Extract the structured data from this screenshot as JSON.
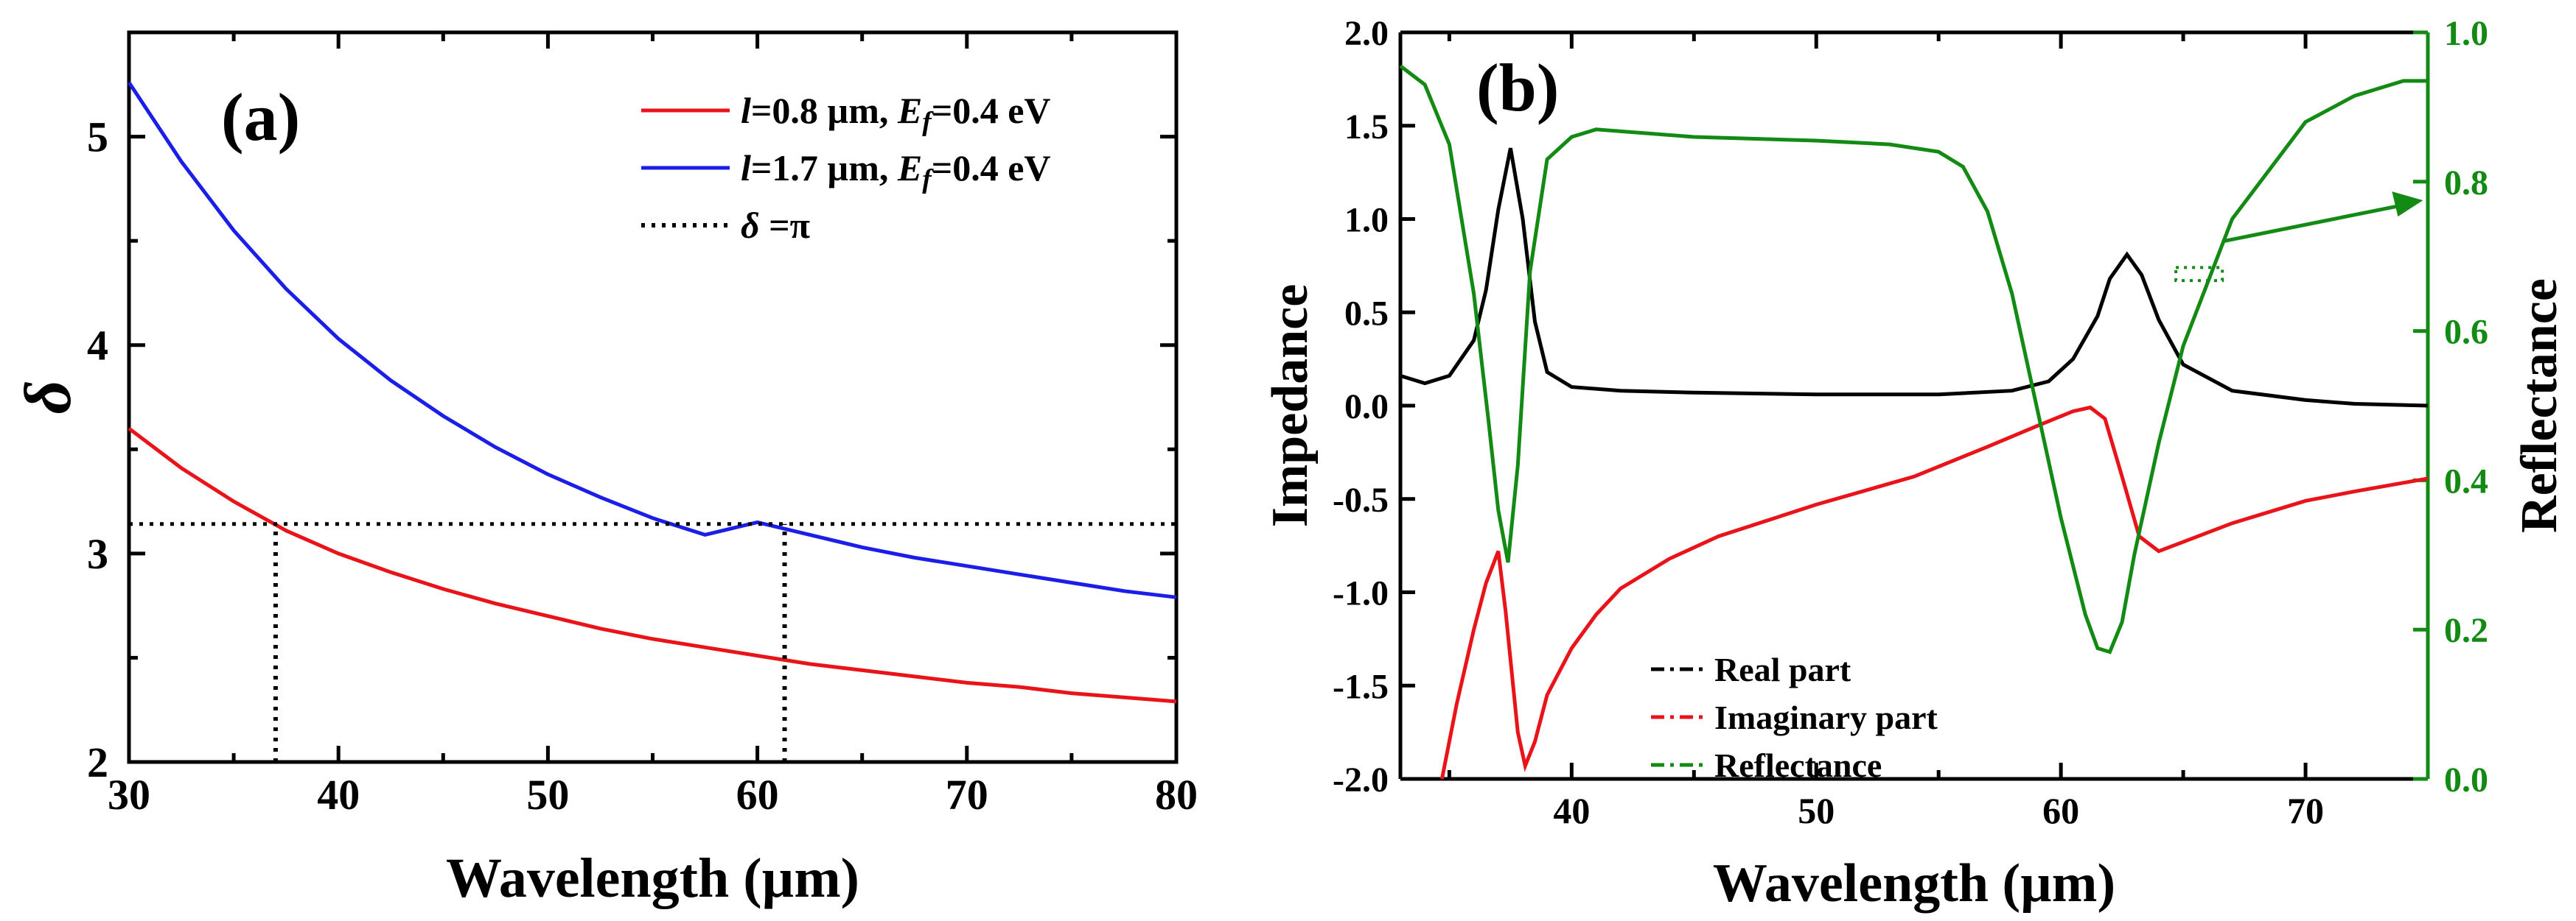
{
  "chart_data": [
    {
      "panel": "(a)",
      "type": "line",
      "xlabel": "Wavelength (µm)",
      "ylabel": "δ",
      "xlim": [
        30,
        80
      ],
      "ylim": [
        2,
        5.5
      ],
      "xticks": [
        30,
        40,
        50,
        60,
        70,
        80
      ],
      "yticks": [
        2,
        3,
        4,
        5
      ],
      "grid": false,
      "legend_placement": "top-right",
      "series": [
        {
          "legend": [
            {
              "text": "l",
              "style": "italic"
            },
            {
              "text": "=0.8 µm, ",
              "style": "normal"
            },
            {
              "text": "E",
              "style": "italic"
            },
            {
              "text": "f",
              "style": "italic-sub"
            },
            {
              "text": "=0.4 eV",
              "style": "normal"
            }
          ],
          "color": "#e8141a",
          "style": "solid",
          "x": [
            30,
            32.5,
            35,
            37.5,
            40,
            42.5,
            45,
            47.5,
            50,
            52.5,
            55,
            57.5,
            60,
            62.5,
            65,
            67.5,
            70,
            72.5,
            75,
            77.5,
            80
          ],
          "y": [
            3.6,
            3.41,
            3.25,
            3.11,
            3.0,
            2.91,
            2.83,
            2.76,
            2.7,
            2.64,
            2.59,
            2.55,
            2.51,
            2.47,
            2.44,
            2.41,
            2.38,
            2.36,
            2.33,
            2.31,
            2.29
          ]
        },
        {
          "legend": [
            {
              "text": "l",
              "style": "italic"
            },
            {
              "text": "=1.7 µm, ",
              "style": "normal"
            },
            {
              "text": "E",
              "style": "italic"
            },
            {
              "text": "f",
              "style": "italic-sub"
            },
            {
              "text": "=0.4 eV",
              "style": "normal"
            }
          ],
          "color": "#1a1ee8",
          "style": "solid",
          "x": [
            30,
            32.5,
            35,
            37.5,
            40,
            42.5,
            45,
            47.5,
            50,
            52.5,
            55,
            57.5,
            60,
            62.5,
            65,
            67.5,
            70,
            72.5,
            75,
            77.5,
            80
          ],
          "y": [
            5.26,
            4.88,
            4.55,
            4.27,
            4.03,
            3.83,
            3.66,
            3.51,
            3.38,
            3.27,
            3.17,
            3.09,
            3.15,
            3.09,
            3.03,
            2.98,
            2.94,
            2.9,
            2.86,
            2.82,
            2.79
          ]
        },
        {
          "legend": [
            {
              "text": "δ",
              "style": "italic"
            },
            {
              "text": " =π",
              "style": "normal"
            }
          ],
          "color": "#000000",
          "style": "dotted",
          "x": [
            30,
            80
          ],
          "y": [
            3.1416,
            3.1416
          ]
        }
      ],
      "reference_lines": [
        {
          "orientation": "vertical",
          "x": 37.0,
          "y_from": 2,
          "y_to": 3.1416,
          "style": "dotted",
          "color": "#000000"
        },
        {
          "orientation": "vertical",
          "x": 61.3,
          "y_from": 2,
          "y_to": 3.1416,
          "style": "dotted",
          "color": "#000000"
        }
      ]
    },
    {
      "panel": "(b)",
      "type": "line",
      "xlabel": "Wavelength (µm)",
      "ylabel": "Impedance",
      "y2label": "Reflectance",
      "xlim": [
        33,
        75
      ],
      "ylim": [
        -2.0,
        2.0
      ],
      "y2lim": [
        0.0,
        1.0
      ],
      "xticks": [
        40,
        50,
        60,
        70
      ],
      "yticks": [
        "-2.0",
        "-1.5",
        "-1.0",
        "-0.5",
        "0.0",
        "0.5",
        "1.0",
        "1.5",
        "2.0"
      ],
      "y2ticks": [
        "0.0",
        "0.2",
        "0.4",
        "0.6",
        "0.8",
        "1.0"
      ],
      "grid": false,
      "legend_placement": "bottom-center",
      "right_axis_color": "#138a13",
      "series": [
        {
          "name": "Real part",
          "axis": "left",
          "color": "#000000",
          "x": [
            33,
            34,
            35,
            36,
            36.5,
            37,
            37.5,
            38,
            38.5,
            39,
            40,
            42,
            45,
            50,
            55,
            58,
            59.5,
            60.5,
            61.5,
            62,
            62.7,
            63.3,
            64,
            65,
            67,
            70,
            72,
            75
          ],
          "y": [
            0.16,
            0.12,
            0.16,
            0.35,
            0.62,
            1.05,
            1.38,
            1.0,
            0.45,
            0.18,
            0.1,
            0.08,
            0.07,
            0.06,
            0.06,
            0.08,
            0.13,
            0.25,
            0.48,
            0.68,
            0.81,
            0.7,
            0.46,
            0.22,
            0.08,
            0.03,
            0.01,
            0.0
          ]
        },
        {
          "name": "Imaginary part",
          "axis": "left",
          "color": "#e8141a",
          "x": [
            34.7,
            35.3,
            36,
            36.5,
            37,
            37.3,
            37.8,
            38.1,
            38.5,
            39,
            40,
            41,
            42,
            44,
            46,
            50,
            54,
            57,
            59,
            60.5,
            61.2,
            61.8,
            62.5,
            63.2,
            64,
            65,
            67,
            70,
            72,
            75
          ],
          "y": [
            -2.0,
            -1.6,
            -1.2,
            -0.95,
            -0.78,
            -1.1,
            -1.75,
            -1.93,
            -1.8,
            -1.55,
            -1.3,
            -1.12,
            -0.98,
            -0.82,
            -0.7,
            -0.53,
            -0.38,
            -0.22,
            -0.11,
            -0.03,
            -0.01,
            -0.07,
            -0.38,
            -0.7,
            -0.78,
            -0.73,
            -0.63,
            -0.51,
            -0.46,
            -0.39
          ]
        },
        {
          "name": "Reflectance",
          "axis": "right",
          "color": "#138a13",
          "x": [
            33,
            34,
            35,
            36,
            36.6,
            37.0,
            37.4,
            37.8,
            38.3,
            39,
            40,
            41,
            45,
            50,
            53,
            55,
            56,
            57,
            58,
            59,
            60,
            61,
            61.5,
            62,
            62.5,
            63,
            64,
            65,
            67,
            70,
            72,
            74,
            75
          ],
          "y": [
            0.955,
            0.93,
            0.85,
            0.65,
            0.48,
            0.36,
            0.29,
            0.42,
            0.68,
            0.83,
            0.86,
            0.87,
            0.86,
            0.855,
            0.85,
            0.84,
            0.82,
            0.76,
            0.65,
            0.5,
            0.35,
            0.22,
            0.175,
            0.17,
            0.21,
            0.3,
            0.45,
            0.58,
            0.75,
            0.88,
            0.915,
            0.935,
            0.935
          ]
        }
      ],
      "annotations": [
        {
          "type": "dotted-box",
          "color": "#138a13",
          "x_from": 64.7,
          "x_to": 66.6,
          "y_from": 0.67,
          "y_to": 0.74,
          "axis": "left"
        },
        {
          "type": "arrow",
          "color": "#138a13",
          "from": [
            66.6,
            0.88
          ],
          "to": [
            74.8,
            1.1
          ],
          "axis": "left"
        }
      ]
    }
  ]
}
